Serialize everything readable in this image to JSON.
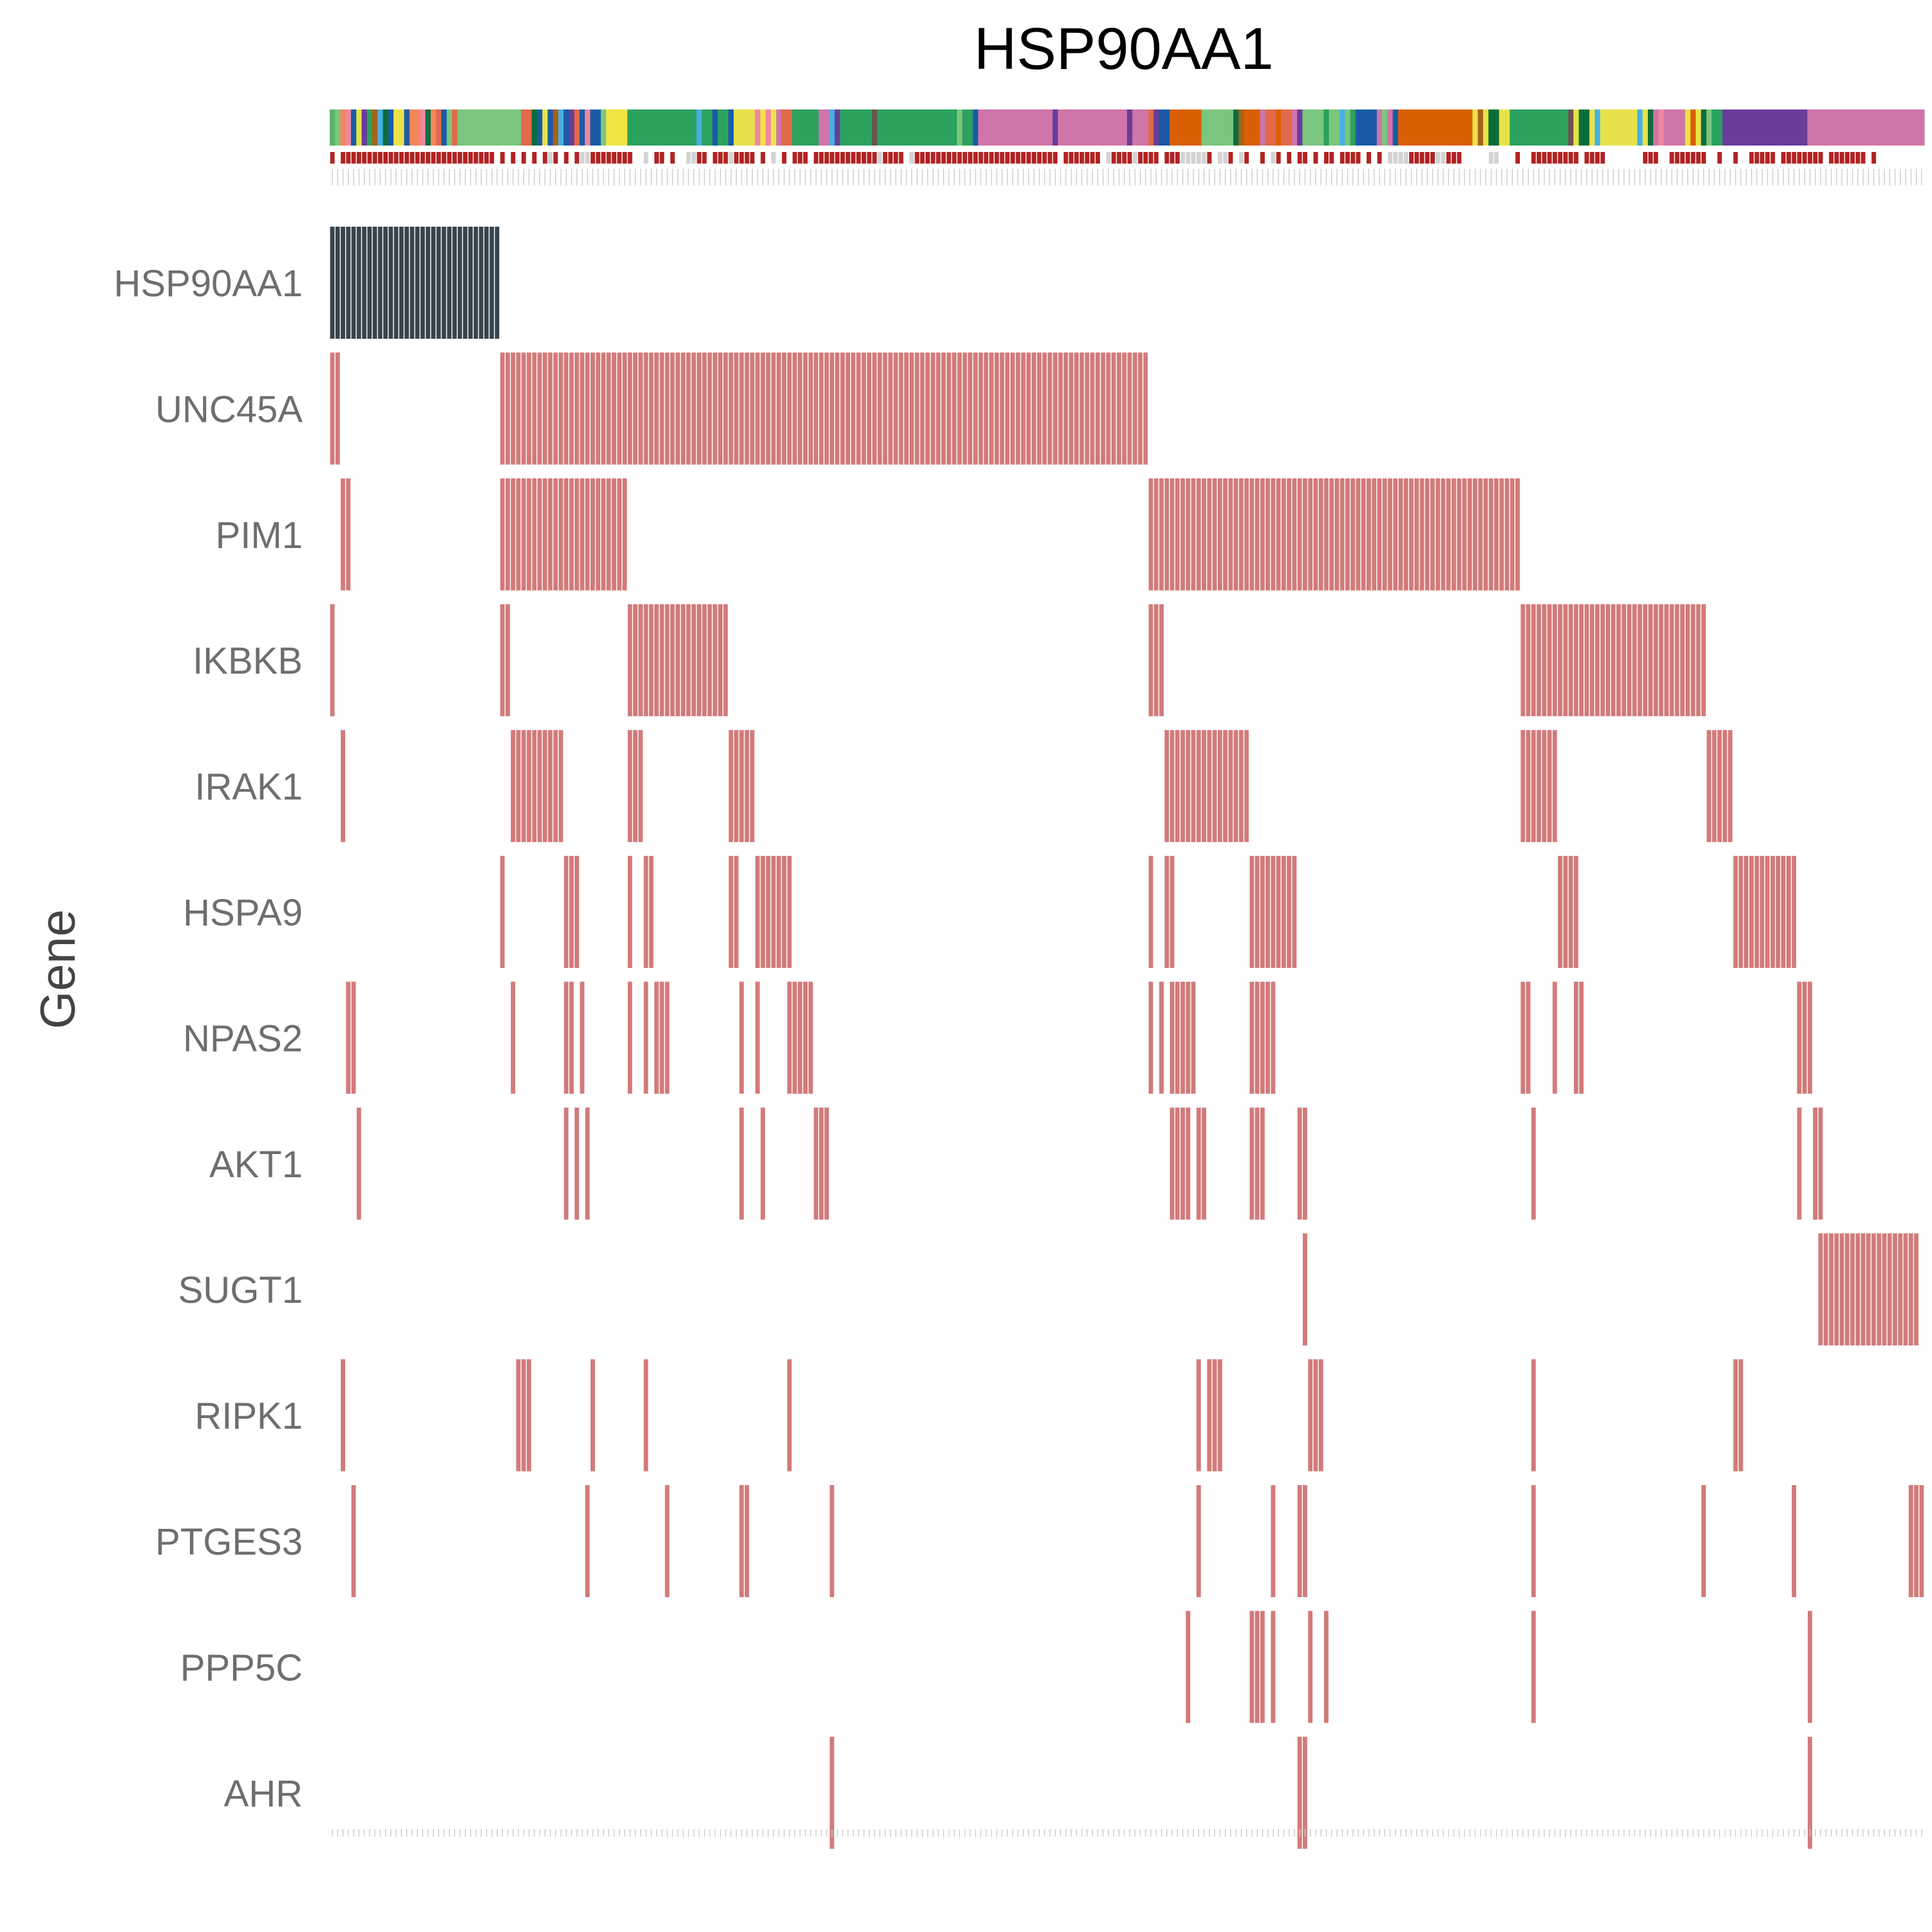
{
  "chart_data": {
    "type": "heatmap",
    "title": "HSP90AA1",
    "ylabel": "Gene",
    "genes": [
      "HSP90AA1",
      "UNC45A",
      "PIM1",
      "IKBKB",
      "IRAK1",
      "HSPA9",
      "NPAS2",
      "AKT1",
      "SUGT1",
      "RIPK1",
      "PTGES3",
      "PPP5C",
      "AHR"
    ],
    "n_samples": 300,
    "colors": {
      "target_gene": "#37444f",
      "altered": "#d27a7a",
      "tick": "#cccccc"
    },
    "altered_sample_ranges": {
      "HSP90AA1": [
        [
          0,
          31
        ]
      ],
      "UNC45A": [
        [
          0,
          1
        ],
        [
          32,
          153
        ]
      ],
      "PIM1": [
        [
          2,
          3
        ],
        [
          32,
          55
        ],
        [
          154,
          223
        ]
      ],
      "IKBKB": [
        [
          0,
          0
        ],
        [
          32,
          33
        ],
        [
          56,
          74
        ],
        [
          154,
          156
        ],
        [
          224,
          258
        ]
      ],
      "IRAK1": [
        [
          2,
          2
        ],
        [
          34,
          43
        ],
        [
          56,
          58
        ],
        [
          75,
          79
        ],
        [
          157,
          172
        ],
        [
          224,
          230
        ],
        [
          259,
          263
        ]
      ],
      "HSPA9": [
        [
          32,
          32
        ],
        [
          44,
          46
        ],
        [
          56,
          56
        ],
        [
          59,
          60
        ],
        [
          75,
          76
        ],
        [
          80,
          86
        ],
        [
          154,
          154
        ],
        [
          157,
          158
        ],
        [
          173,
          181
        ],
        [
          231,
          234
        ],
        [
          264,
          275
        ]
      ],
      "NPAS2": [
        [
          3,
          4
        ],
        [
          34,
          34
        ],
        [
          44,
          45
        ],
        [
          47,
          47
        ],
        [
          56,
          56
        ],
        [
          59,
          59
        ],
        [
          61,
          63
        ],
        [
          77,
          77
        ],
        [
          80,
          80
        ],
        [
          86,
          90
        ],
        [
          154,
          154
        ],
        [
          156,
          156
        ],
        [
          158,
          162
        ],
        [
          173,
          177
        ],
        [
          224,
          225
        ],
        [
          230,
          230
        ],
        [
          234,
          235
        ],
        [
          276,
          278
        ]
      ],
      "AKT1": [
        [
          5,
          5
        ],
        [
          44,
          44
        ],
        [
          46,
          46
        ],
        [
          48,
          48
        ],
        [
          77,
          77
        ],
        [
          81,
          81
        ],
        [
          91,
          93
        ],
        [
          158,
          161
        ],
        [
          163,
          164
        ],
        [
          173,
          175
        ],
        [
          182,
          183
        ],
        [
          226,
          226
        ],
        [
          276,
          276
        ],
        [
          279,
          280
        ]
      ],
      "SUGT1": [
        [
          183,
          183
        ],
        [
          280,
          298
        ]
      ],
      "RIPK1": [
        [
          2,
          2
        ],
        [
          35,
          37
        ],
        [
          49,
          49
        ],
        [
          59,
          59
        ],
        [
          86,
          86
        ],
        [
          163,
          163
        ],
        [
          165,
          167
        ],
        [
          184,
          186
        ],
        [
          226,
          226
        ],
        [
          264,
          265
        ]
      ],
      "PTGES3": [
        [
          4,
          4
        ],
        [
          48,
          48
        ],
        [
          63,
          63
        ],
        [
          77,
          78
        ],
        [
          94,
          94
        ],
        [
          163,
          163
        ],
        [
          177,
          177
        ],
        [
          182,
          183
        ],
        [
          226,
          226
        ],
        [
          258,
          258
        ],
        [
          275,
          275
        ],
        [
          297,
          299
        ]
      ],
      "PPP5C": [
        [
          161,
          161
        ],
        [
          173,
          175
        ],
        [
          177,
          177
        ],
        [
          184,
          184
        ],
        [
          187,
          187
        ],
        [
          226,
          226
        ],
        [
          278,
          278
        ]
      ],
      "AHR": [
        [
          94,
          94
        ],
        [
          182,
          183
        ],
        [
          278,
          278
        ]
      ]
    },
    "sample_annotation_colors": [
      "#59b36b",
      "#7bc67e",
      "#f7855a",
      "#ef87a1",
      "#1a5ba6",
      "#e8e24a",
      "#6a3d9a",
      "#2ca25f",
      "#a6611a",
      "#45b1e0",
      "#0d6d38",
      "#1a5ba6",
      "#e8e24a",
      "#e8e24a",
      "#1a5ba6",
      "#f7855a",
      "#f7855a",
      "#ef87a1",
      "#0d6d38",
      "#f7855a",
      "#e06a4a",
      "#1a5ba6",
      "#7bc67e",
      "#e06a4a",
      "#7bc67e",
      "#7bc67e",
      "#7bc67e",
      "#7bc67e",
      "#7bc67e",
      "#7bc67e",
      "#7bc67e",
      "#7bc67e",
      "#7bc67e",
      "#7bc67e",
      "#7bc67e",
      "#7bc67e",
      "#e06a4a",
      "#e06a4a",
      "#0d6d38",
      "#1a5ba6",
      "#e8e24a",
      "#1a5ba6",
      "#a6611a",
      "#45b1e0",
      "#1a5ba6",
      "#6a3d9a",
      "#e06a4a",
      "#1a5ba6",
      "#ef87a1",
      "#1a5ba6",
      "#1a5ba6",
      "#7bc67e",
      "#f0e442",
      "#f0e442",
      "#f0e442",
      "#f0e442",
      "#2ca25f",
      "#2ca25f",
      "#2ca25f",
      "#2ca25f",
      "#2ca25f",
      "#2ca25f",
      "#2ca25f",
      "#2ca25f",
      "#2ca25f",
      "#2ca25f",
      "#2ca25f",
      "#2ca25f",
      "#2ca25f",
      "#45b1e0",
      "#2ca25f",
      "#2ca25f",
      "#1a5ba6",
      "#2ca25f",
      "#2ca25f",
      "#1a5ba6",
      "#e8e24a",
      "#e8e24a",
      "#e8e24a",
      "#e8e24a",
      "#ef87a1",
      "#f0e442",
      "#ef87a1",
      "#f0e442",
      "#cf75a9",
      "#e06a4a",
      "#e06a4a",
      "#2ca25f",
      "#2ca25f",
      "#2ca25f",
      "#2ca25f",
      "#2ca25f",
      "#cf75a9",
      "#cf75a9",
      "#45b1e0",
      "#6a3d9a",
      "#2ca25f",
      "#2ca25f",
      "#2ca25f",
      "#2ca25f",
      "#2ca25f",
      "#2ca25f",
      "#6a5450",
      "#2ca25f",
      "#2ca25f",
      "#2ca25f",
      "#2ca25f",
      "#2ca25f",
      "#2ca25f",
      "#2ca25f",
      "#2ca25f",
      "#2ca25f",
      "#2ca25f",
      "#2ca25f",
      "#2ca25f",
      "#2ca25f",
      "#2ca25f",
      "#2ca25f",
      "#7bc67e",
      "#2ca25f",
      "#2ca25f",
      "#1a5ba6",
      "#cf75a9",
      "#cf75a9",
      "#cf75a9",
      "#cf75a9",
      "#cf75a9",
      "#cf75a9",
      "#cf75a9",
      "#cf75a9",
      "#cf75a9",
      "#cf75a9",
      "#cf75a9",
      "#cf75a9",
      "#cf75a9",
      "#cf75a9",
      "#6a3d9a",
      "#cf75a9",
      "#cf75a9",
      "#cf75a9",
      "#cf75a9",
      "#cf75a9",
      "#cf75a9",
      "#cf75a9",
      "#cf75a9",
      "#cf75a9",
      "#cf75a9",
      "#cf75a9",
      "#cf75a9",
      "#cf75a9",
      "#6a3d9a",
      "#cf75a9",
      "#cf75a9",
      "#cf75a9",
      "#e06a4a",
      "#6a3d9a",
      "#1a5ba6",
      "#1a5ba6",
      "#d95f02",
      "#d95f02",
      "#d95f02",
      "#d95f02",
      "#d95f02",
      "#d95f02",
      "#7bc67e",
      "#7bc67e",
      "#7bc67e",
      "#7bc67e",
      "#7bc67e",
      "#7bc67e",
      "#0d6d38",
      "#a6611a",
      "#d95f02",
      "#d95f02",
      "#d95f02",
      "#cf75a9",
      "#e06a4a",
      "#e06a4a",
      "#d95f02",
      "#e06a4a",
      "#e06a4a",
      "#cf75a9",
      "#6a3d9a",
      "#7bc67e",
      "#7bc67e",
      "#7bc67e",
      "#7bc67e",
      "#2ca25f",
      "#7bc67e",
      "#7bc67e",
      "#45b1e0",
      "#7bc67e",
      "#2ca25f",
      "#1a5ba6",
      "#1a5ba6",
      "#1a5ba6",
      "#1a5ba6",
      "#cf75a9",
      "#7bc67e",
      "#cf75a9",
      "#1a5ba6",
      "#d95f02",
      "#d95f02",
      "#d95f02",
      "#d95f02",
      "#d95f02",
      "#d95f02",
      "#d95f02",
      "#d95f02",
      "#d95f02",
      "#d95f02",
      "#d95f02",
      "#d95f02",
      "#d95f02",
      "#d95f02",
      "#e8e24a",
      "#a6611a",
      "#e8e24a",
      "#0d6d38",
      "#0d6d38",
      "#e8e24a",
      "#e8e24a",
      "#2ca25f",
      "#2ca25f",
      "#2ca25f",
      "#2ca25f",
      "#2ca25f",
      "#2ca25f",
      "#2ca25f",
      "#2ca25f",
      "#2ca25f",
      "#2ca25f",
      "#2ca25f",
      "#6a5450",
      "#e8e24a",
      "#0d6d38",
      "#0d6d38",
      "#e8e24a",
      "#45b1e0",
      "#e8e24a",
      "#e8e24a",
      "#e8e24a",
      "#e8e24a",
      "#e8e24a",
      "#e8e24a",
      "#e8e24a",
      "#45b1e0",
      "#e8e24a",
      "#0d6d38",
      "#cf75a9",
      "#ef87a1",
      "#cf75a9",
      "#cf75a9",
      "#cf75a9",
      "#cf75a9",
      "#e8e24a",
      "#d95f02",
      "#e8e24a",
      "#0d6d38",
      "#7bc67e",
      "#2ca25f",
      "#2ca25f",
      "#6a3d9a",
      "#6a3d9a",
      "#6a3d9a",
      "#6a3d9a",
      "#6a3d9a",
      "#6a3d9a",
      "#6a3d9a",
      "#6a3d9a",
      "#6a3d9a",
      "#6a3d9a",
      "#6a3d9a",
      "#6a3d9a",
      "#6a3d9a",
      "#6a3d9a",
      "#6a3d9a",
      "#6a3d9a",
      "#cf75a9",
      "#cf75a9",
      "#cf75a9",
      "#cf75a9",
      "#cf75a9",
      "#cf75a9",
      "#cf75a9",
      "#cf75a9",
      "#cf75a9",
      "#cf75a9",
      "#cf75a9",
      "#cf75a9",
      "#cf75a9",
      "#cf75a9",
      "#cf75a9",
      "#cf75a9",
      "#cf75a9",
      "#cf75a9",
      "#cf75a9",
      "#cf75a9",
      "#cf75a9",
      "#cf75a9"
    ],
    "sample_status_colors": [
      "#b22222",
      "#ffffff",
      "#b22222",
      "#b22222",
      "#b22222",
      "#b22222",
      "#b22222",
      "#b22222",
      "#b22222",
      "#b22222",
      "#b22222",
      "#b22222",
      "#b22222",
      "#b22222",
      "#b22222",
      "#b22222",
      "#b22222",
      "#b22222",
      "#b22222",
      "#b22222",
      "#b22222",
      "#b22222",
      "#b22222",
      "#b22222",
      "#b22222",
      "#b22222",
      "#b22222",
      "#b22222",
      "#b22222",
      "#b22222",
      "#b22222",
      "#ffffff",
      "#b22222",
      "#ffffff",
      "#b22222",
      "#ffffff",
      "#b22222",
      "#ffffff",
      "#b22222",
      "#ffffff",
      "#b22222",
      "#d3d3d3",
      "#b22222",
      "#ffffff",
      "#b22222",
      "#ffffff",
      "#b22222",
      "#d3d3d3",
      "#d3d3d3",
      "#b22222",
      "#b22222",
      "#b22222",
      "#b22222",
      "#b22222",
      "#b22222",
      "#b22222",
      "#b22222",
      "#ffffff",
      "#ffffff",
      "#d3d3d3",
      "#ffffff",
      "#b22222",
      "#b22222",
      "#ffffff",
      "#b22222",
      "#ffffff",
      "#ffffff",
      "#d3d3d3",
      "#d3d3d3",
      "#b22222",
      "#b22222",
      "#ffffff",
      "#b22222",
      "#b22222",
      "#b22222",
      "#d3d3d3",
      "#b22222",
      "#b22222",
      "#b22222",
      "#b22222",
      "#ffffff",
      "#b22222",
      "#ffffff",
      "#d3d3d3",
      "#ffffff",
      "#b22222",
      "#ffffff",
      "#b22222",
      "#b22222",
      "#b22222",
      "#ffffff",
      "#b22222",
      "#b22222",
      "#b22222",
      "#b22222",
      "#b22222",
      "#b22222",
      "#b22222",
      "#b22222",
      "#b22222",
      "#b22222",
      "#b22222",
      "#b22222",
      "#d3d3d3",
      "#b22222",
      "#b22222",
      "#b22222",
      "#b22222",
      "#ffffff",
      "#d3d3d3",
      "#b22222",
      "#b22222",
      "#b22222",
      "#b22222",
      "#b22222",
      "#b22222",
      "#b22222",
      "#b22222",
      "#b22222",
      "#b22222",
      "#b22222",
      "#b22222",
      "#b22222",
      "#b22222",
      "#b22222",
      "#b22222",
      "#b22222",
      "#b22222",
      "#b22222",
      "#b22222",
      "#b22222",
      "#b22222",
      "#b22222",
      "#b22222",
      "#b22222",
      "#b22222",
      "#b22222",
      "#ffffff",
      "#b22222",
      "#b22222",
      "#b22222",
      "#b22222",
      "#b22222",
      "#b22222",
      "#b22222",
      "#ffffff",
      "#d3d3d3",
      "#b22222",
      "#b22222",
      "#b22222",
      "#b22222",
      "#d3d3d3",
      "#b22222",
      "#b22222",
      "#b22222",
      "#b22222",
      "#ffffff",
      "#b22222",
      "#b22222",
      "#b22222",
      "#d3d3d3",
      "#d3d3d3",
      "#d3d3d3",
      "#d3d3d3",
      "#d3d3d3",
      "#b22222",
      "#ffffff",
      "#d3d3d3",
      "#d3d3d3",
      "#b22222",
      "#ffffff",
      "#d3d3d3",
      "#b22222",
      "#ffffff",
      "#ffffff",
      "#b22222",
      "#ffffff",
      "#d3d3d3",
      "#b22222",
      "#ffffff",
      "#b22222",
      "#ffffff",
      "#b22222",
      "#b22222",
      "#ffffff",
      "#b22222",
      "#ffffff",
      "#b22222",
      "#b22222",
      "#ffffff",
      "#b22222",
      "#b22222",
      "#b22222",
      "#b22222",
      "#ffffff",
      "#b22222",
      "#ffffff",
      "#b22222",
      "#ffffff",
      "#d3d3d3",
      "#d3d3d3",
      "#d3d3d3",
      "#d3d3d3",
      "#b22222",
      "#b22222",
      "#b22222",
      "#b22222",
      "#b22222",
      "#d3d3d3",
      "#d3d3d3",
      "#b22222",
      "#b22222",
      "#b22222",
      "#ffffff",
      "#ffffff",
      "#ffffff",
      "#ffffff",
      "#ffffff",
      "#d3d3d3",
      "#d3d3d3",
      "#ffffff",
      "#ffffff",
      "#ffffff",
      "#b22222",
      "#ffffff",
      "#ffffff",
      "#b22222",
      "#b22222",
      "#b22222",
      "#b22222",
      "#b22222",
      "#b22222",
      "#b22222",
      "#b22222",
      "#b22222",
      "#ffffff",
      "#b22222",
      "#b22222",
      "#b22222",
      "#b22222",
      "#ffffff",
      "#ffffff",
      "#ffffff",
      "#ffffff",
      "#ffffff",
      "#ffffff",
      "#ffffff",
      "#b22222",
      "#b22222",
      "#b22222",
      "#ffffff",
      "#ffffff",
      "#b22222",
      "#b22222",
      "#b22222",
      "#b22222",
      "#b22222",
      "#b22222",
      "#b22222",
      "#ffffff",
      "#ffffff",
      "#b22222",
      "#ffffff",
      "#ffffff",
      "#b22222",
      "#ffffff",
      "#ffffff",
      "#b22222",
      "#b22222",
      "#b22222",
      "#b22222",
      "#b22222",
      "#ffffff",
      "#b22222",
      "#b22222",
      "#b22222",
      "#b22222",
      "#b22222",
      "#b22222",
      "#b22222",
      "#b22222",
      "#ffffff",
      "#b22222",
      "#b22222",
      "#b22222",
      "#b22222",
      "#b22222",
      "#b22222",
      "#b22222",
      "#ffffff",
      "#b22222"
    ],
    "grid": false,
    "legend": "none"
  }
}
